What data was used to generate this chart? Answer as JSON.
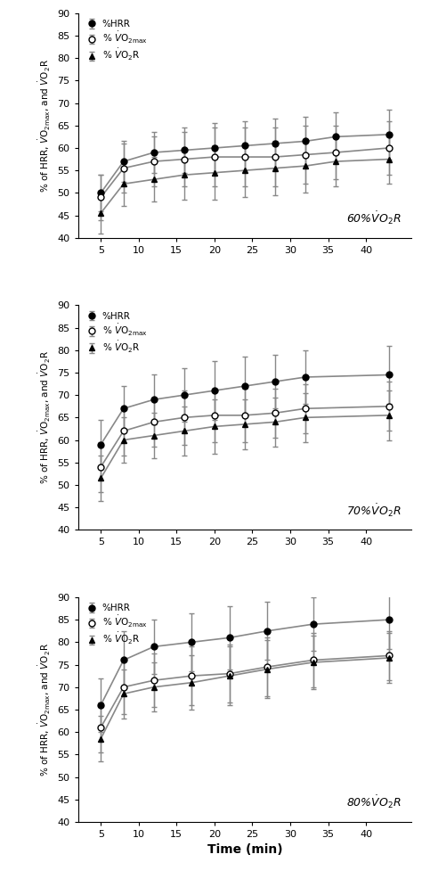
{
  "t0": [
    5,
    8,
    12,
    16,
    20,
    24,
    28,
    32,
    36,
    43
  ],
  "t1": [
    5,
    8,
    12,
    16,
    20,
    24,
    28,
    32,
    43
  ],
  "t2": [
    5,
    8,
    12,
    17,
    22,
    27,
    33,
    43
  ],
  "p0_HRR_y": [
    50.0,
    57.0,
    59.0,
    59.5,
    60.0,
    60.5,
    61.0,
    61.5,
    62.5,
    63.0
  ],
  "p0_HRR_err": [
    4.0,
    4.5,
    4.5,
    5.0,
    5.5,
    5.5,
    5.5,
    5.5,
    5.5,
    5.5
  ],
  "p0_VO2max_y": [
    49.0,
    55.5,
    57.0,
    57.5,
    58.0,
    58.0,
    58.0,
    58.5,
    59.0,
    60.0
  ],
  "p0_VO2max_e": [
    5.0,
    5.5,
    5.5,
    6.0,
    6.5,
    6.5,
    6.5,
    6.5,
    6.0,
    6.0
  ],
  "p0_VO2R_y": [
    45.5,
    52.0,
    53.0,
    54.0,
    54.5,
    55.0,
    55.5,
    56.0,
    57.0,
    57.5
  ],
  "p0_VO2R_e": [
    4.5,
    5.0,
    5.0,
    5.5,
    6.0,
    6.0,
    6.0,
    6.0,
    5.5,
    5.5
  ],
  "p1_HRR_y": [
    59.0,
    67.0,
    69.0,
    70.0,
    71.0,
    72.0,
    73.0,
    74.0,
    74.5
  ],
  "p1_HRR_err": [
    5.5,
    5.0,
    5.5,
    6.0,
    6.5,
    6.5,
    6.0,
    6.0,
    6.5
  ],
  "p1_VO2max_y": [
    54.0,
    62.0,
    64.0,
    65.0,
    65.5,
    65.5,
    66.0,
    67.0,
    67.5
  ],
  "p1_VO2max_e": [
    5.5,
    5.5,
    5.5,
    6.0,
    6.0,
    6.0,
    5.5,
    5.5,
    5.5
  ],
  "p1_VO2R_y": [
    51.5,
    60.0,
    61.0,
    62.0,
    63.0,
    63.5,
    64.0,
    65.0,
    65.5
  ],
  "p1_VO2R_e": [
    5.0,
    5.0,
    5.0,
    5.5,
    6.0,
    5.5,
    5.5,
    5.5,
    5.5
  ],
  "p2_HRR_y": [
    66.0,
    76.0,
    79.0,
    80.0,
    81.0,
    82.5,
    84.0,
    85.0
  ],
  "p2_HRR_err": [
    6.0,
    6.5,
    6.0,
    6.5,
    7.0,
    6.5,
    6.0,
    6.5
  ],
  "p2_VO2max_y": [
    61.0,
    70.0,
    71.5,
    72.5,
    73.0,
    74.5,
    76.0,
    77.0
  ],
  "p2_VO2max_e": [
    5.5,
    6.0,
    6.0,
    6.5,
    6.5,
    6.5,
    6.0,
    5.5
  ],
  "p2_VO2R_y": [
    58.5,
    68.5,
    70.0,
    71.0,
    72.5,
    74.0,
    75.5,
    76.5
  ],
  "p2_VO2R_e": [
    5.0,
    5.5,
    5.5,
    6.0,
    6.5,
    6.5,
    6.0,
    5.5
  ],
  "ylim": [
    40,
    90
  ],
  "yticks": [
    40,
    45,
    50,
    55,
    60,
    65,
    70,
    75,
    80,
    85,
    90
  ],
  "xticks": [
    5,
    10,
    15,
    20,
    25,
    30,
    35,
    40
  ],
  "xlim": [
    2,
    46
  ],
  "xlabel": "Time (min)",
  "ecolor": "#888888",
  "lcolor": "#888888"
}
